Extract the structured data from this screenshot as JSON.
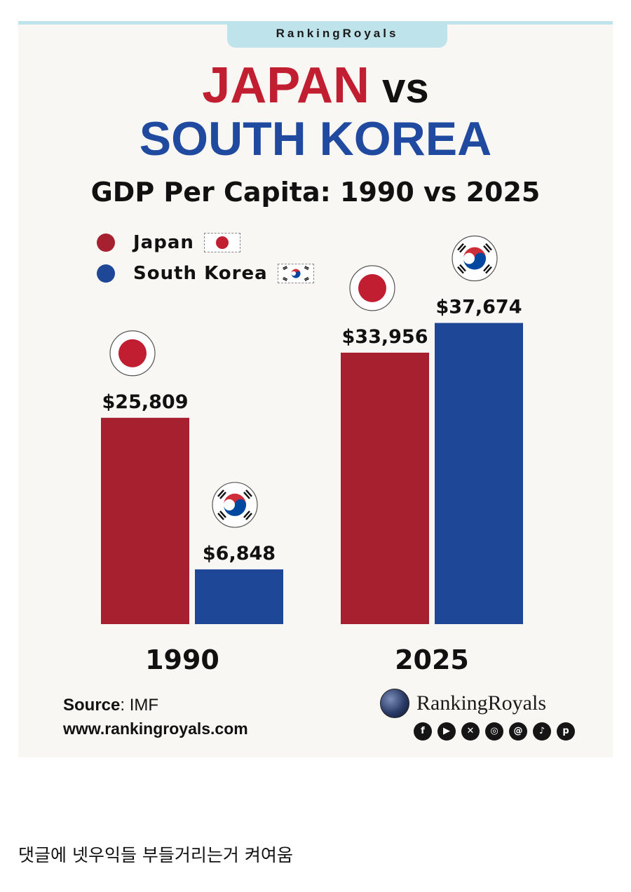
{
  "brand_tab": "RankingRoyals",
  "headline": {
    "line1_a": "JAPAN",
    "line1_b": "vs",
    "line2": "SOUTH KOREA"
  },
  "colors": {
    "japan": "#a6202f",
    "south_korea": "#1e4798",
    "korea_flag_red": "#cd2e3a",
    "korea_flag_blue": "#0047a0"
  },
  "chart_data": {
    "type": "bar",
    "title": "GDP Per Capita: 1990 vs 2025",
    "categories": [
      "1990",
      "2025"
    ],
    "series": [
      {
        "name": "Japan",
        "values": [
          25809,
          33956
        ],
        "labels": [
          "$25,809",
          "$33,956"
        ]
      },
      {
        "name": "South Korea",
        "values": [
          6848,
          37674
        ],
        "labels": [
          "$6,848",
          "$37,674"
        ]
      }
    ],
    "ylim": [
      0,
      40000
    ],
    "grid": false,
    "legend": "top-left"
  },
  "footer": {
    "source_label": "Source",
    "source_value": ": IMF",
    "url": "www.rankingroyals.com",
    "logo_text": "RankingRoyals",
    "social_icons": [
      "facebook-icon",
      "youtube-icon",
      "x-icon",
      "instagram-icon",
      "threads-icon",
      "tiktok-icon",
      "pinterest-icon"
    ]
  },
  "caption": "댓글에 넷우익들 부들거리는거 켜여움"
}
